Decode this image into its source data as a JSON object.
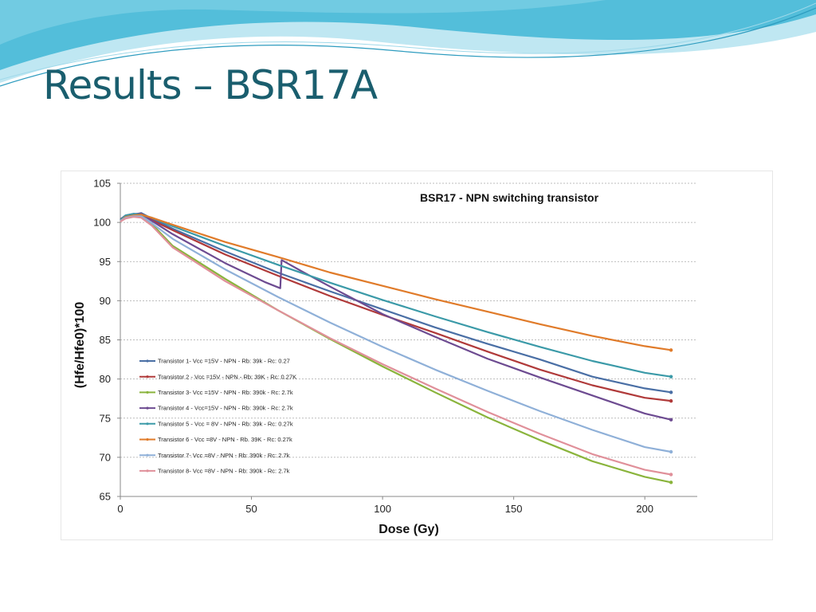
{
  "slide": {
    "title": "Results – BSR17A",
    "colors": {
      "title": "#1a5e6e",
      "wave_dark": "#3fb6d6",
      "wave_light": "#bfe7f2"
    }
  },
  "chart_data": {
    "type": "line",
    "title": "BSR17 - NPN switching transistor",
    "xlabel": "Dose (Gy)",
    "ylabel": "(Hfe/Hfe0)*100",
    "xlim": [
      0,
      220
    ],
    "ylim": [
      65,
      105
    ],
    "x_ticks": [
      0,
      50,
      100,
      150,
      200
    ],
    "y_ticks": [
      65,
      70,
      75,
      80,
      85,
      90,
      95,
      100,
      105
    ],
    "grid": "horizontal-dashed",
    "legend_position": "left-bottom",
    "series": [
      {
        "name": "Transistor 1- Vcc =15V - NPN - Rb: 39k - Rc: 0.27",
        "color": "#4a6fa5",
        "points": [
          [
            0,
            100.2
          ],
          [
            2,
            100.8
          ],
          [
            5,
            101
          ],
          [
            8,
            101.2
          ],
          [
            12,
            100.5
          ],
          [
            20,
            99.2
          ],
          [
            40,
            96.3
          ],
          [
            60,
            93.6
          ],
          [
            80,
            91.2
          ],
          [
            100,
            88.9
          ],
          [
            120,
            86.6
          ],
          [
            140,
            84.5
          ],
          [
            160,
            82.5
          ],
          [
            180,
            80.3
          ],
          [
            200,
            78.8
          ],
          [
            210,
            78.3
          ]
        ]
      },
      {
        "name": "Transistor 2 - Vcc =15V - NPN - Rb: 39K - Rc: 0.27K",
        "color": "#b03a3a",
        "points": [
          [
            0,
            100.3
          ],
          [
            2,
            100.8
          ],
          [
            5,
            101
          ],
          [
            8,
            101.1
          ],
          [
            12,
            100.3
          ],
          [
            20,
            99
          ],
          [
            40,
            95.9
          ],
          [
            60,
            93.2
          ],
          [
            80,
            90.6
          ],
          [
            100,
            88.2
          ],
          [
            120,
            85.9
          ],
          [
            140,
            83.5
          ],
          [
            160,
            81.2
          ],
          [
            180,
            79.2
          ],
          [
            200,
            77.6
          ],
          [
            210,
            77.2
          ]
        ]
      },
      {
        "name": "Transistor 3- Vcc =15V - NPN - Rb: 390k - Rc: 2.7k",
        "color": "#8ab43c",
        "points": [
          [
            0,
            100.2
          ],
          [
            2,
            100.7
          ],
          [
            5,
            100.9
          ],
          [
            8,
            100.9
          ],
          [
            12,
            99.8
          ],
          [
            20,
            97
          ],
          [
            40,
            92.8
          ],
          [
            60,
            88.8
          ],
          [
            80,
            85.1
          ],
          [
            100,
            81.6
          ],
          [
            120,
            78.3
          ],
          [
            140,
            75.1
          ],
          [
            160,
            72.2
          ],
          [
            180,
            69.5
          ],
          [
            200,
            67.5
          ],
          [
            210,
            66.8
          ]
        ]
      },
      {
        "name": "Transistor 4 - Vcc=15V - NPN - Rb: 390k - Rc: 2.7k",
        "color": "#6d4b91",
        "points": [
          [
            0,
            100.4
          ],
          [
            2,
            100.9
          ],
          [
            5,
            101.1
          ],
          [
            8,
            101.1
          ],
          [
            12,
            100.2
          ],
          [
            20,
            98.5
          ],
          [
            40,
            94.8
          ],
          [
            55,
            92.4
          ],
          [
            61,
            91.6
          ],
          [
            61.5,
            95.2
          ],
          [
            70,
            93.6
          ],
          [
            80,
            91.8
          ],
          [
            100,
            88.3
          ],
          [
            120,
            85.4
          ],
          [
            140,
            82.6
          ],
          [
            160,
            80.2
          ],
          [
            180,
            77.9
          ],
          [
            200,
            75.6
          ],
          [
            210,
            74.8
          ]
        ]
      },
      {
        "name": "Transistor 5 - Vcc = 8V - NPN - Rb: 39k - Rc: 0.27k",
        "color": "#3b9aa8",
        "points": [
          [
            0,
            100.3
          ],
          [
            2,
            100.9
          ],
          [
            5,
            101.1
          ],
          [
            8,
            101
          ],
          [
            12,
            100.6
          ],
          [
            20,
            99.5
          ],
          [
            40,
            97
          ],
          [
            60,
            94.6
          ],
          [
            80,
            92.3
          ],
          [
            100,
            90.1
          ],
          [
            120,
            88
          ],
          [
            140,
            86
          ],
          [
            160,
            84.1
          ],
          [
            180,
            82.3
          ],
          [
            200,
            80.8
          ],
          [
            210,
            80.3
          ]
        ]
      },
      {
        "name": "Transistor 6 - Vcc =8V - NPN - Rb. 39K - Rc: 0.27k",
        "color": "#e07b2a",
        "points": [
          [
            0,
            100.2
          ],
          [
            2,
            100.7
          ],
          [
            5,
            100.9
          ],
          [
            8,
            101
          ],
          [
            12,
            100.6
          ],
          [
            20,
            99.7
          ],
          [
            40,
            97.5
          ],
          [
            60,
            95.6
          ],
          [
            80,
            93.6
          ],
          [
            100,
            91.9
          ],
          [
            120,
            90.2
          ],
          [
            140,
            88.6
          ],
          [
            160,
            87
          ],
          [
            180,
            85.5
          ],
          [
            200,
            84.2
          ],
          [
            210,
            83.7
          ]
        ]
      },
      {
        "name": "Transistor 7- Vcc =8V - NPN - Rb: 390k - Rc: 2.7k",
        "color": "#8fb0d8",
        "points": [
          [
            0,
            100.2
          ],
          [
            2,
            100.6
          ],
          [
            5,
            100.8
          ],
          [
            8,
            100.8
          ],
          [
            12,
            99.9
          ],
          [
            20,
            97.9
          ],
          [
            40,
            94
          ],
          [
            60,
            90.5
          ],
          [
            80,
            87.2
          ],
          [
            100,
            84.1
          ],
          [
            120,
            81.2
          ],
          [
            140,
            78.5
          ],
          [
            160,
            75.9
          ],
          [
            180,
            73.5
          ],
          [
            200,
            71.3
          ],
          [
            210,
            70.7
          ]
        ]
      },
      {
        "name": "Transistor 8- Vcc =8V - NPN - Rb: 390k - Rc: 2.7k",
        "color": "#e0909a",
        "points": [
          [
            0,
            100.1
          ],
          [
            2,
            100.5
          ],
          [
            5,
            100.7
          ],
          [
            8,
            100.6
          ],
          [
            12,
            99.6
          ],
          [
            20,
            96.8
          ],
          [
            40,
            92.5
          ],
          [
            60,
            88.8
          ],
          [
            80,
            85.2
          ],
          [
            100,
            81.9
          ],
          [
            120,
            78.8
          ],
          [
            140,
            75.8
          ],
          [
            160,
            73
          ],
          [
            180,
            70.4
          ],
          [
            200,
            68.4
          ],
          [
            210,
            67.8
          ]
        ]
      }
    ]
  }
}
